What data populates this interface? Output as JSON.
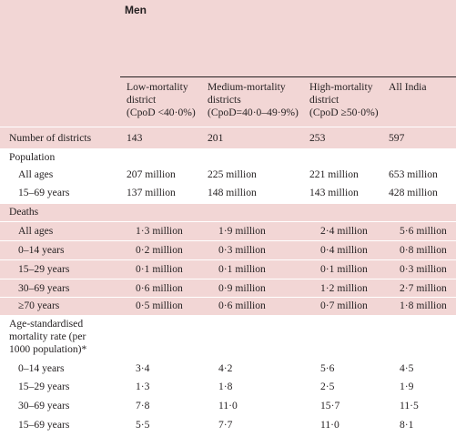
{
  "header": {
    "group": "Men",
    "columns": [
      {
        "line1": "Low-mortality",
        "line2": "district",
        "line3": "(CpoD <40·0%)"
      },
      {
        "line1": "Medium-mortality",
        "line2": "districts",
        "line3": "(CpoD=40·0–49·9%)"
      },
      {
        "line1": "High-mortality",
        "line2": "district",
        "line3": "(CpoD ≥50·0%)"
      },
      {
        "line1": "All India",
        "line2": "",
        "line3": ""
      }
    ]
  },
  "rows": {
    "districts": {
      "label": "Number of districts",
      "values": [
        "143",
        "201",
        "253",
        "597"
      ]
    },
    "population": {
      "label": "Population"
    },
    "pop_all": {
      "label": "All ages",
      "values": [
        "207 million",
        "225 million",
        "221 million",
        "653 million"
      ]
    },
    "pop_1569": {
      "label": "15–69 years",
      "values": [
        "137 million",
        "148 million",
        "143 million",
        "428 million"
      ]
    },
    "deaths": {
      "label": "Deaths"
    },
    "d_all": {
      "label": "All ages",
      "values": [
        "1·3 million",
        "1·9 million",
        "2·4 million",
        "5·6 million"
      ]
    },
    "d_014": {
      "label": "0–14 years",
      "values": [
        "0·2 million",
        "0·3 million",
        "0·4 million",
        "0·8 million"
      ]
    },
    "d_1529": {
      "label": "15–29 years",
      "values": [
        "0·1 million",
        "0·1 million",
        "0·1 million",
        "0·3 million"
      ]
    },
    "d_3069": {
      "label": "30–69 years",
      "values": [
        "0·6 million",
        "0·9 million",
        "1·2 million",
        "2·7 million"
      ]
    },
    "d_70": {
      "label": "≥70 years",
      "values": [
        "0·5 million",
        "0·6 million",
        "0·7 million",
        "1·8 million"
      ]
    },
    "asmr": {
      "line1": "Age-standardised",
      "line2": "mortality rate (per",
      "line3": "1000 population)*"
    },
    "r_014": {
      "label": "0–14 years",
      "values": [
        "3·4",
        "4·2",
        "5·6",
        "4·5"
      ]
    },
    "r_1529": {
      "label": "15–29 years",
      "values": [
        "1·3",
        "1·8",
        "2·5",
        "1·9"
      ]
    },
    "r_3069": {
      "label": "30–69 years",
      "values": [
        "7·8",
        "11·0",
        "15·7",
        "11·5"
      ]
    },
    "r_1569": {
      "label": "15–69 years",
      "values": [
        "5·5",
        "7·7",
        "11·0",
        "8·1"
      ]
    }
  }
}
